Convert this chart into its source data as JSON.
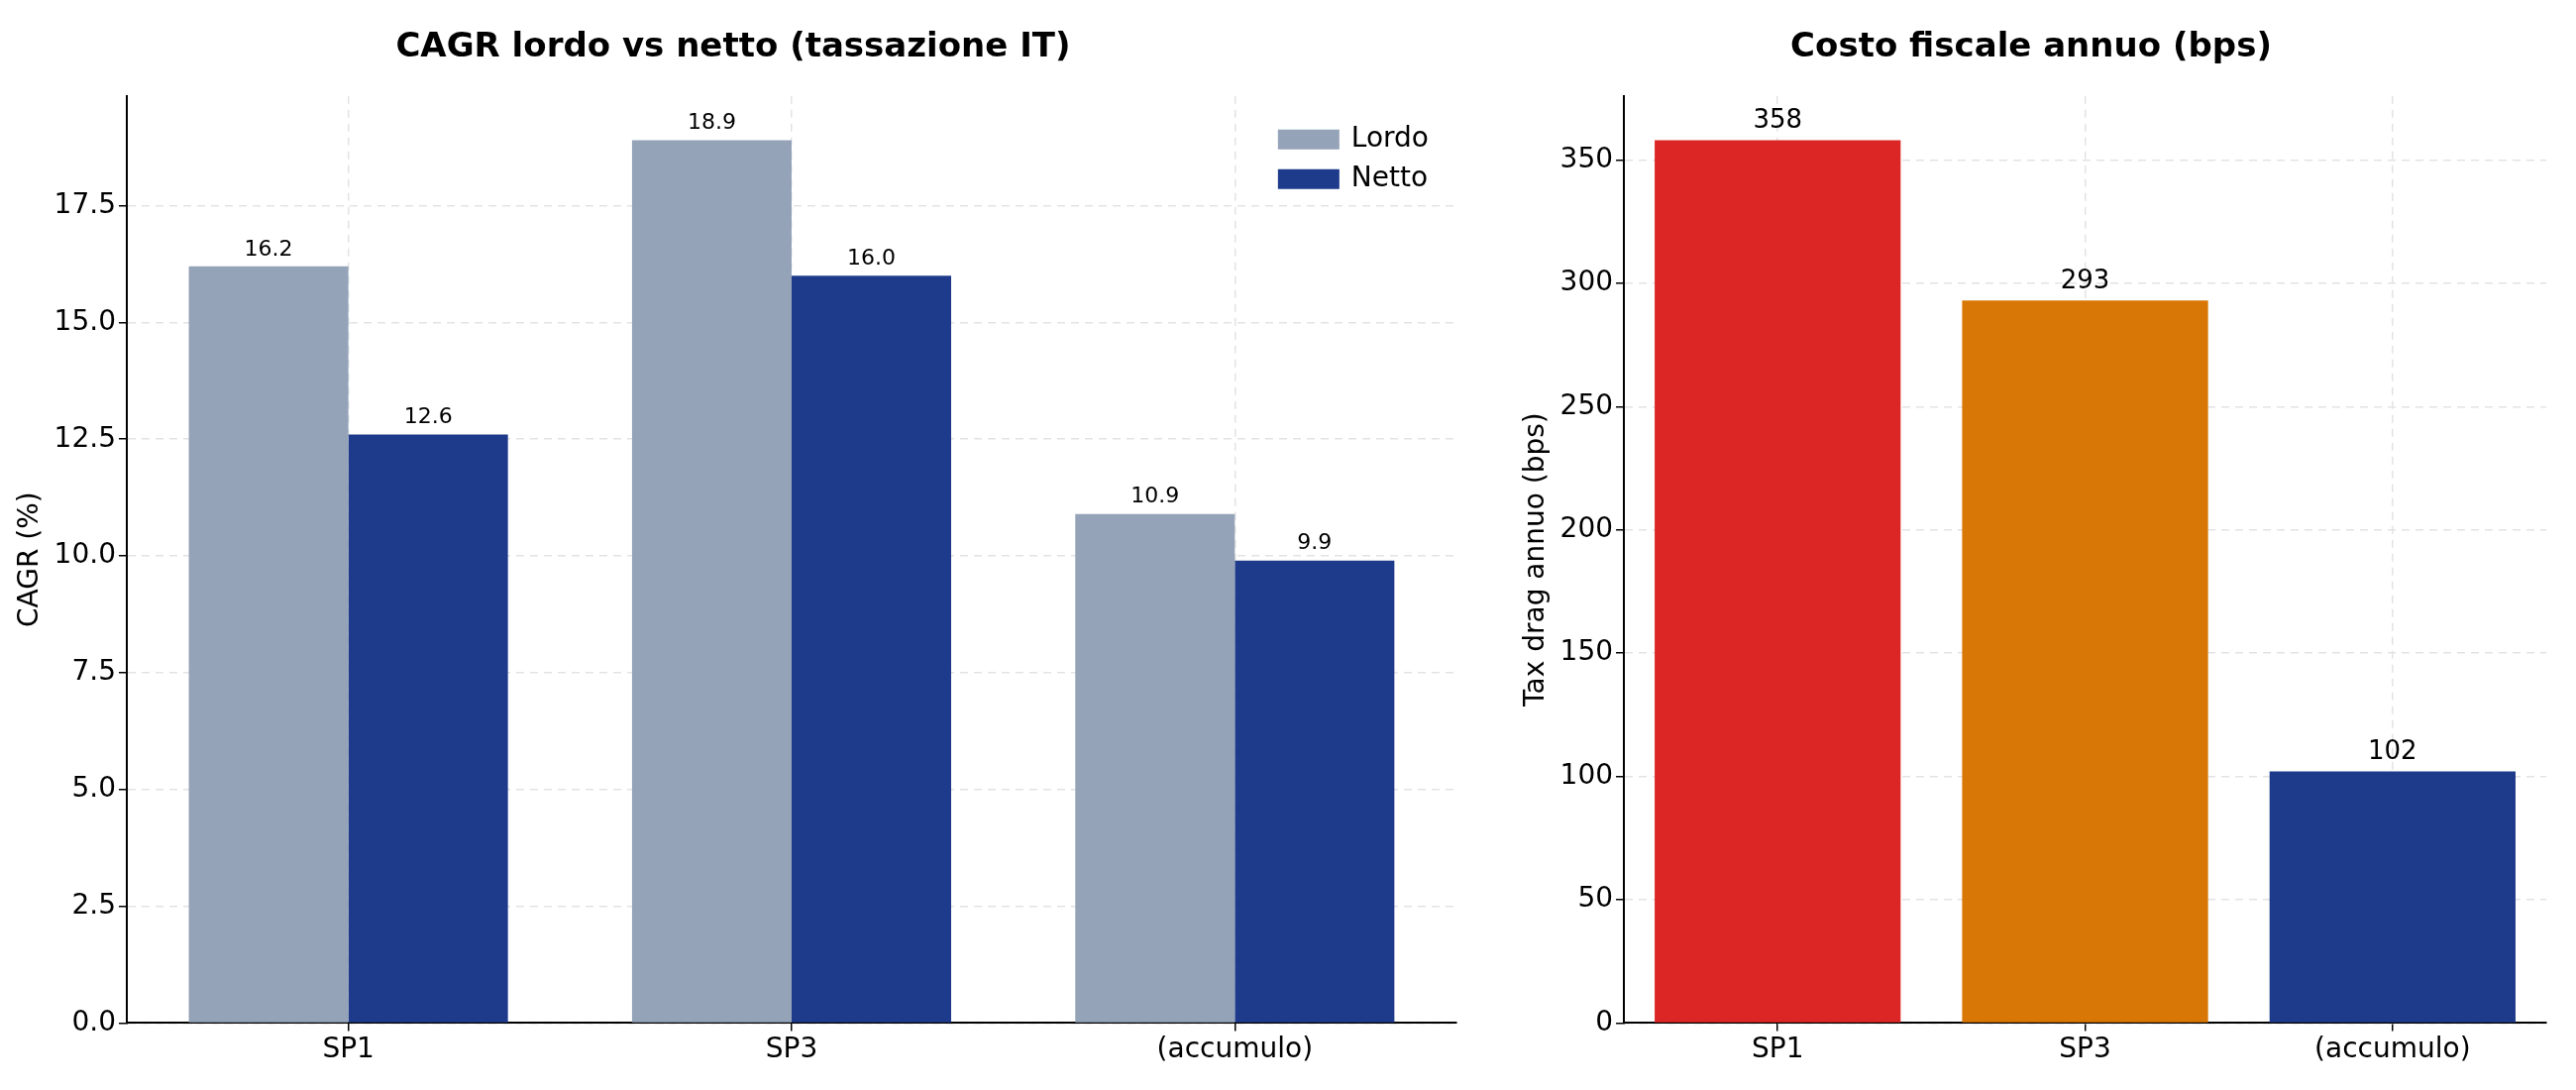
{
  "chart_data": [
    {
      "type": "bar",
      "title": "CAGR lordo vs netto (tassazione IT)",
      "ylabel": "CAGR (%)",
      "categories": [
        "SP1",
        "SP3",
        "(accumulo)"
      ],
      "series": [
        {
          "name": "Lordo",
          "color": "#94a3b8",
          "values": [
            16.2,
            18.9,
            10.9
          ],
          "value_labels": [
            "16.2",
            "18.9",
            "10.9"
          ]
        },
        {
          "name": "Netto",
          "color": "#1e3a8a",
          "values": [
            12.6,
            16.0,
            9.9
          ],
          "value_labels": [
            "12.6",
            "16.0",
            "9.9"
          ]
        }
      ],
      "ylim": [
        0,
        19.85
      ],
      "yticks": [
        {
          "value": 0,
          "label": "0.0"
        },
        {
          "value": 2.5,
          "label": "2.5"
        },
        {
          "value": 5,
          "label": "5.0"
        },
        {
          "value": 7.5,
          "label": "7.5"
        },
        {
          "value": 10,
          "label": "10.0"
        },
        {
          "value": 12.5,
          "label": "12.5"
        },
        {
          "value": 15,
          "label": "15.0"
        },
        {
          "value": 17.5,
          "label": "17.5"
        }
      ],
      "grid": true,
      "legend": "top right"
    },
    {
      "type": "bar",
      "title": "Costo fiscale annuo (bps)",
      "ylabel": "Tax drag annuo (bps)",
      "categories": [
        "SP1",
        "SP3",
        "(accumulo)"
      ],
      "values": [
        358,
        293,
        102
      ],
      "colors": [
        "#dc2626",
        "#d97706",
        "#1e3a8a"
      ],
      "data_labels": true,
      "ylim": [
        0,
        376
      ],
      "yticks": [
        0,
        50,
        100,
        150,
        200,
        250,
        300,
        350
      ],
      "grid": true
    }
  ]
}
